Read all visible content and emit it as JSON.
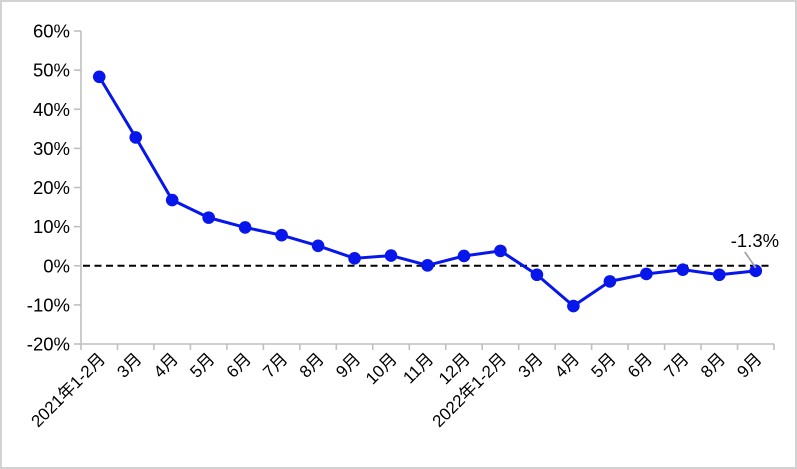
{
  "chart_data": {
    "type": "line",
    "categories": [
      "2021年1-2月",
      "3月",
      "4月",
      "5月",
      "6月",
      "7月",
      "8月",
      "9月",
      "10月",
      "11月",
      "12月",
      "2022年1-2月",
      "3月",
      "4月",
      "5月",
      "6月",
      "7月",
      "8月",
      "9月"
    ],
    "values": [
      48.3,
      32.8,
      16.8,
      12.3,
      9.8,
      7.8,
      5.1,
      1.9,
      2.6,
      0.1,
      2.5,
      3.8,
      -2.3,
      -10.3,
      -4.0,
      -2.1,
      -1.0,
      -2.3,
      -1.3
    ],
    "title": "",
    "xlabel": "",
    "ylabel": "",
    "ylim": [
      -20,
      60
    ],
    "ytick_step": 10,
    "ytick_labels": [
      "60%",
      "50%",
      "40%",
      "30%",
      "20%",
      "10%",
      "0%",
      "-10%",
      "-20%"
    ],
    "grid": false,
    "legend": "none",
    "x_label_rotation_deg": 45,
    "zero_line": {
      "value": 0,
      "style": "dashed",
      "color": "#000000"
    },
    "annotation": {
      "text": "-1.3%",
      "target_index": 18
    },
    "colors": {
      "line": "#0716ea",
      "marker": "#0716ea",
      "axis": "#bfbfbf",
      "leader_line": "#a6a6a6",
      "text": "#000000",
      "frame": "#d2d2d2",
      "background": "#ffffff"
    }
  }
}
